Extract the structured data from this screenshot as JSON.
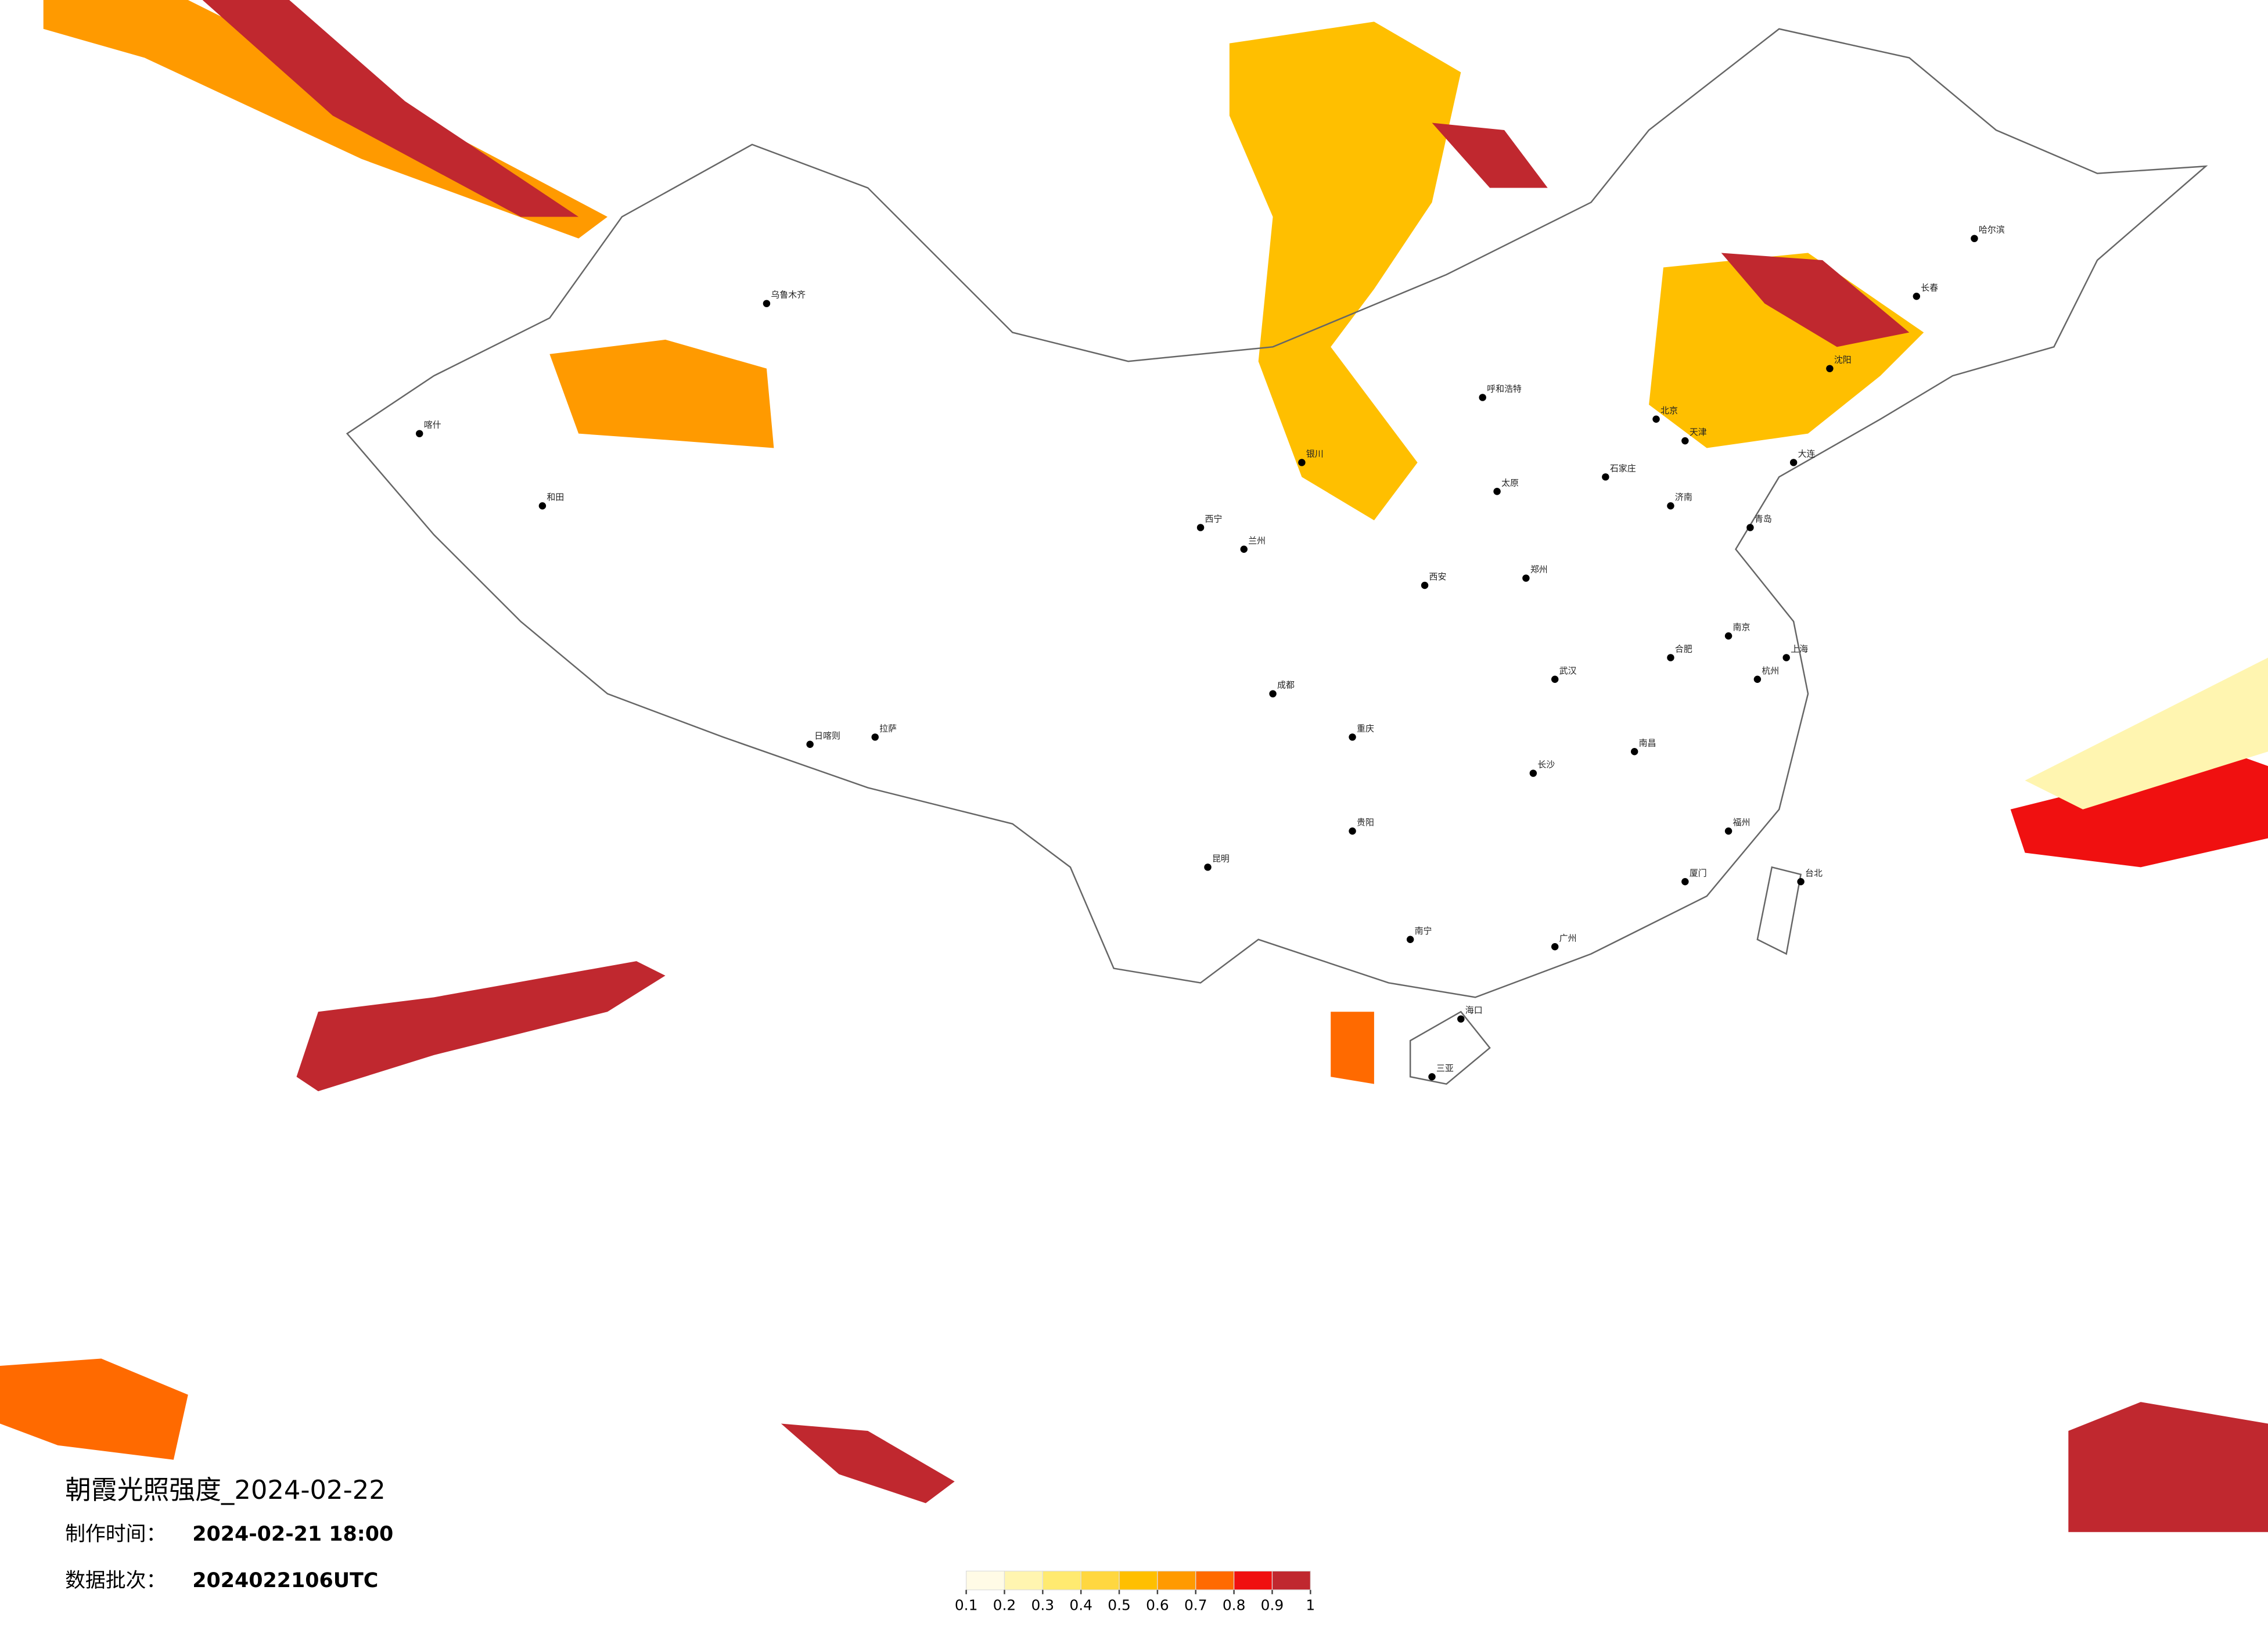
{
  "header": {
    "title": "朝霞光照强度_2024-02-22",
    "made_label": "制作时间：",
    "made_time": "2024-02-21 18:00",
    "batch_label": "数据批次：",
    "batch": "2024022106UTC"
  },
  "legend": {
    "colors": [
      "#fffbe6",
      "#fff5b0",
      "#ffea70",
      "#ffd740",
      "#ffbf00",
      "#ff9a00",
      "#ff6a00",
      "#f01010",
      "#c0282f"
    ],
    "ticks": [
      0.1,
      0.2,
      0.3,
      0.4,
      0.5,
      0.6,
      0.7,
      0.8,
      0.9,
      1
    ]
  },
  "cities": [
    "北京",
    "天津",
    "上海",
    "广州",
    "重庆",
    "成都",
    "西安",
    "武汉",
    "长沙",
    "南京",
    "杭州",
    "郑州",
    "济南",
    "沈阳",
    "长春",
    "哈尔滨",
    "乌鲁木齐",
    "拉萨",
    "西宁",
    "兰州",
    "银川",
    "呼和浩特",
    "昆明",
    "贵阳",
    "南宁",
    "海口",
    "福州",
    "台北",
    "南昌",
    "合肥",
    "太原",
    "石家庄",
    "和田",
    "喀什",
    "日喀则",
    "三亚",
    "大连",
    "青岛",
    "厦门"
  ]
}
